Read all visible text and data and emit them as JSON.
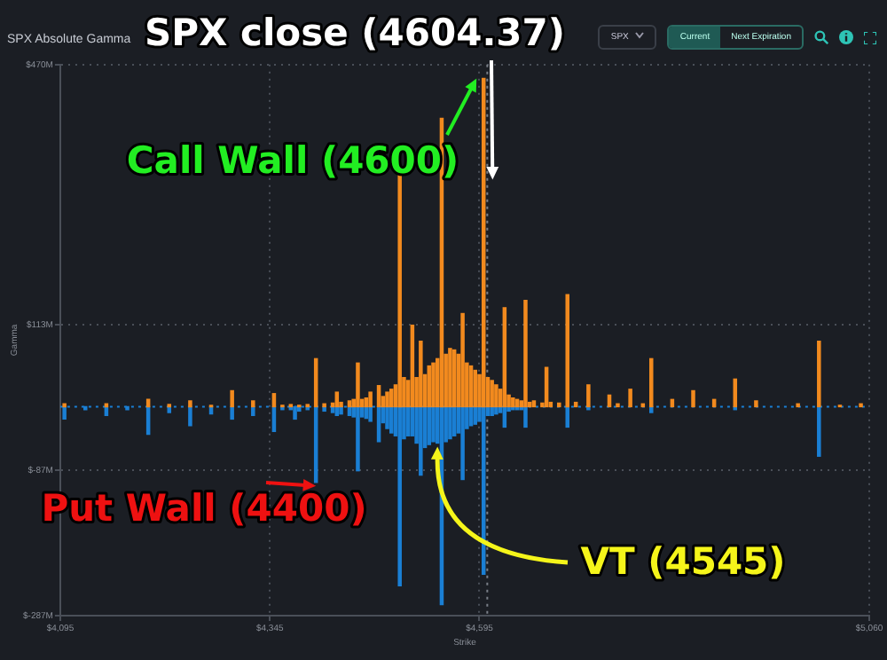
{
  "chart_data": {
    "type": "bar",
    "title": "SPX Absolute Gamma",
    "xlabel": "Strike",
    "ylabel": "Gamma",
    "xlim": [
      4095,
      5060
    ],
    "xticks": [
      {
        "value": 4095,
        "label": "$4,095"
      },
      {
        "value": 4345,
        "label": "$4,345"
      },
      {
        "value": 4595,
        "label": "$4,595"
      },
      {
        "value": 5060,
        "label": "$5,060"
      }
    ],
    "ylim": [
      -287,
      470
    ],
    "yticks": [
      {
        "value": -287,
        "label": "$-287M"
      },
      {
        "value": -87,
        "label": "$-87M"
      },
      {
        "value": 113,
        "label": "$113M"
      },
      {
        "value": 470,
        "label": "$470M"
      }
    ],
    "grid": true,
    "series": [
      {
        "color": "#f28a1e",
        "x": [
          4100,
          4150,
          4200,
          4225,
          4250,
          4275,
          4300,
          4325,
          4350,
          4360,
          4370,
          4380,
          4390,
          4400,
          4410,
          4420,
          4425,
          4430,
          4440,
          4445,
          4450,
          4455,
          4460,
          4465,
          4475,
          4480,
          4485,
          4490,
          4495,
          4500,
          4505,
          4510,
          4515,
          4520,
          4525,
          4530,
          4535,
          4540,
          4545,
          4550,
          4555,
          4560,
          4565,
          4570,
          4575,
          4580,
          4585,
          4590,
          4595,
          4600,
          4605,
          4610,
          4615,
          4620,
          4625,
          4630,
          4635,
          4640,
          4645,
          4650,
          4655,
          4660,
          4670,
          4675,
          4680,
          4690,
          4700,
          4710,
          4725,
          4750,
          4760,
          4775,
          4790,
          4800,
          4825,
          4850,
          4875,
          4900,
          4925,
          4975,
          5000,
          5025,
          5050
        ],
        "values": [
          4,
          4,
          10,
          3,
          8,
          2,
          22,
          8,
          18,
          2,
          3,
          2,
          3,
          66,
          4,
          5,
          20,
          6,
          8,
          10,
          60,
          10,
          12,
          20,
          29,
          14,
          20,
          24,
          30,
          324,
          40,
          36,
          112,
          40,
          90,
          44,
          56,
          60,
          66,
          396,
          72,
          80,
          78,
          72,
          128,
          60,
          56,
          50,
          44,
          451,
          40,
          36,
          30,
          24,
          136,
          16,
          12,
          10,
          8,
          146,
          6,
          8,
          5,
          54,
          6,
          5,
          154,
          6,
          30,
          16,
          4,
          24,
          4,
          66,
          10,
          22,
          10,
          38,
          8,
          4,
          90,
          2,
          4
        ]
      },
      {
        "color": "#1a7fd4",
        "x": [
          4100,
          4125,
          4150,
          4175,
          4200,
          4225,
          4250,
          4275,
          4300,
          4325,
          4350,
          4360,
          4370,
          4375,
          4380,
          4390,
          4400,
          4410,
          4420,
          4425,
          4430,
          4440,
          4445,
          4450,
          4455,
          4460,
          4465,
          4475,
          4480,
          4485,
          4490,
          4495,
          4500,
          4505,
          4510,
          4515,
          4520,
          4525,
          4530,
          4535,
          4540,
          4545,
          4550,
          4555,
          4560,
          4565,
          4570,
          4575,
          4580,
          4585,
          4590,
          4595,
          4600,
          4605,
          4610,
          4615,
          4620,
          4625,
          4630,
          4635,
          4640,
          4645,
          4650,
          4700,
          4725,
          4800,
          4900,
          5000
        ],
        "values": [
          -17,
          -4,
          -12,
          -4,
          -38,
          -8,
          -26,
          -10,
          -17,
          -12,
          -34,
          -4,
          -4,
          -17,
          -6,
          -4,
          -104,
          -6,
          -8,
          -12,
          -10,
          -12,
          -14,
          -88,
          -14,
          -16,
          -20,
          -48,
          -22,
          -30,
          -36,
          -40,
          -246,
          -44,
          -40,
          -40,
          -50,
          -94,
          -56,
          -52,
          -48,
          -50,
          -272,
          -48,
          -44,
          -40,
          -36,
          -100,
          -30,
          -26,
          -24,
          -20,
          -230,
          -12,
          -12,
          -10,
          -8,
          -28,
          -6,
          -4,
          -4,
          -4,
          -28,
          -28,
          -4,
          -8,
          -4,
          -68
        ]
      }
    ],
    "ref_lines": [
      {
        "axis": "y",
        "value": 0,
        "color": "#1a7fd4",
        "line_style": "dotted"
      },
      {
        "axis": "x",
        "value": 4604.37,
        "color": "#7a7f88",
        "line_style": "dotted"
      }
    ],
    "annotations": [
      {
        "text": "SPX close (4604.37)",
        "x": 4604.37,
        "y": 312
      },
      {
        "text": "Call Wall (4600)",
        "x": 4600,
        "y": 451
      },
      {
        "text": "Put Wall (4400)",
        "x": 4400,
        "y": -104
      },
      {
        "text": "VT (4545)",
        "x": 4545,
        "y": -50
      },
      "SPX",
      "Current",
      "Next Expiration"
    ]
  }
}
